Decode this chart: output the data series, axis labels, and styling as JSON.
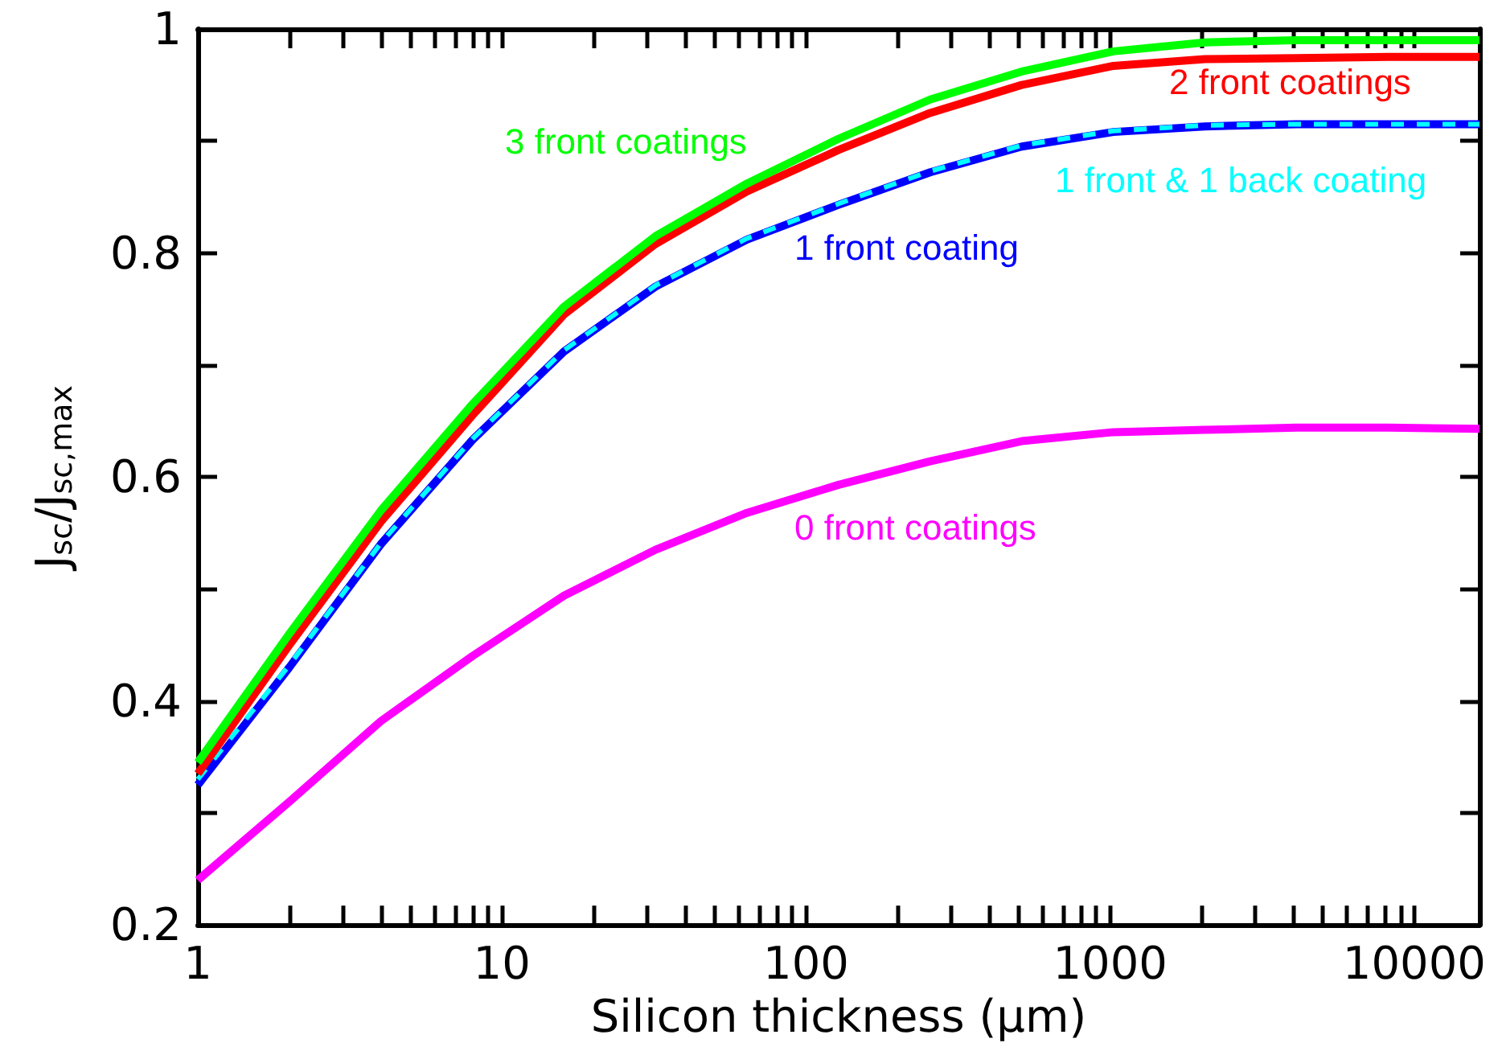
{
  "chart_data": {
    "type": "line",
    "xlabel": "Silicon thickness (μm)",
    "ylabel": "J$_{sc}$/J$_{sc,max}$",
    "log": "x",
    "x": [
      1,
      2,
      4,
      8,
      16,
      32,
      64,
      128,
      256,
      512,
      1024,
      2048,
      4096,
      8192,
      16384
    ],
    "series": [
      {
        "name": "0 front coatings",
        "color": "#ff00ff",
        "line_style": "solid",
        "values": [
          0.24,
          0.31,
          0.382,
          0.44,
          0.494,
          0.535,
          0.568,
          0.593,
          0.614,
          0.632,
          0.64,
          0.642,
          0.644,
          0.644,
          0.643
        ]
      },
      {
        "name": "1 front coating",
        "color": "#0000ff",
        "line_style": "solid",
        "values": [
          0.325,
          0.43,
          0.54,
          0.633,
          0.712,
          0.77,
          0.812,
          0.843,
          0.872,
          0.895,
          0.908,
          0.913,
          0.915,
          0.915,
          0.915
        ]
      },
      {
        "name": "1 front & 1 back coating",
        "color": "#00ffff",
        "line_style": "dashed",
        "values": [
          0.33,
          0.432,
          0.541,
          0.634,
          0.713,
          0.771,
          0.813,
          0.844,
          0.873,
          0.896,
          0.909,
          0.914,
          0.915,
          0.915,
          0.915
        ]
      },
      {
        "name": "2 front coatings",
        "color": "#ff0000",
        "line_style": "solid",
        "values": [
          0.335,
          0.45,
          0.56,
          0.655,
          0.745,
          0.808,
          0.855,
          0.892,
          0.925,
          0.95,
          0.967,
          0.973,
          0.974,
          0.975,
          0.975
        ]
      },
      {
        "name": "3 front coatings",
        "color": "#00ff00",
        "line_style": "solid",
        "values": [
          0.345,
          0.46,
          0.57,
          0.665,
          0.752,
          0.815,
          0.862,
          0.902,
          0.937,
          0.962,
          0.98,
          0.988,
          0.99,
          0.99,
          0.99
        ]
      }
    ],
    "xlim": [
      1,
      16384
    ],
    "xticks": [
      1,
      {
        "value": 2,
        "label": null
      },
      {
        "value": 3,
        "label": null
      },
      {
        "value": 4,
        "label": null
      },
      {
        "value": 5,
        "label": null
      },
      {
        "value": 6,
        "label": null
      },
      {
        "value": 7,
        "label": null
      },
      {
        "value": 8,
        "label": null
      },
      {
        "value": 9,
        "label": null
      },
      10,
      {
        "value": 20,
        "label": null
      },
      {
        "value": 30,
        "label": null
      },
      {
        "value": 40,
        "label": null
      },
      {
        "value": 50,
        "label": null
      },
      {
        "value": 60,
        "label": null
      },
      {
        "value": 70,
        "label": null
      },
      {
        "value": 80,
        "label": null
      },
      {
        "value": 90,
        "label": null
      },
      100,
      {
        "value": 200,
        "label": null
      },
      {
        "value": 300,
        "label": null
      },
      {
        "value": 400,
        "label": null
      },
      {
        "value": 500,
        "label": null
      },
      {
        "value": 600,
        "label": null
      },
      {
        "value": 700,
        "label": null
      },
      {
        "value": 800,
        "label": null
      },
      {
        "value": 900,
        "label": null
      },
      1000,
      {
        "value": 2000,
        "label": null
      },
      {
        "value": 3000,
        "label": null
      },
      {
        "value": 4000,
        "label": null
      },
      {
        "value": 5000,
        "label": null
      },
      {
        "value": 6000,
        "label": null
      },
      {
        "value": 7000,
        "label": null
      },
      {
        "value": 8000,
        "label": null
      },
      {
        "value": 9000,
        "label": null
      },
      10000
    ],
    "ylim": [
      0.2,
      1
    ],
    "yticks": [
      0.2,
      {
        "value": 0.3,
        "label": null
      },
      0.4,
      {
        "value": 0.5,
        "label": null
      },
      0.6,
      {
        "value": 0.7,
        "label": null
      },
      0.8,
      {
        "value": 0.9,
        "label": null
      },
      1
    ],
    "grid": false,
    "legend": false,
    "marker": "none"
  }
}
